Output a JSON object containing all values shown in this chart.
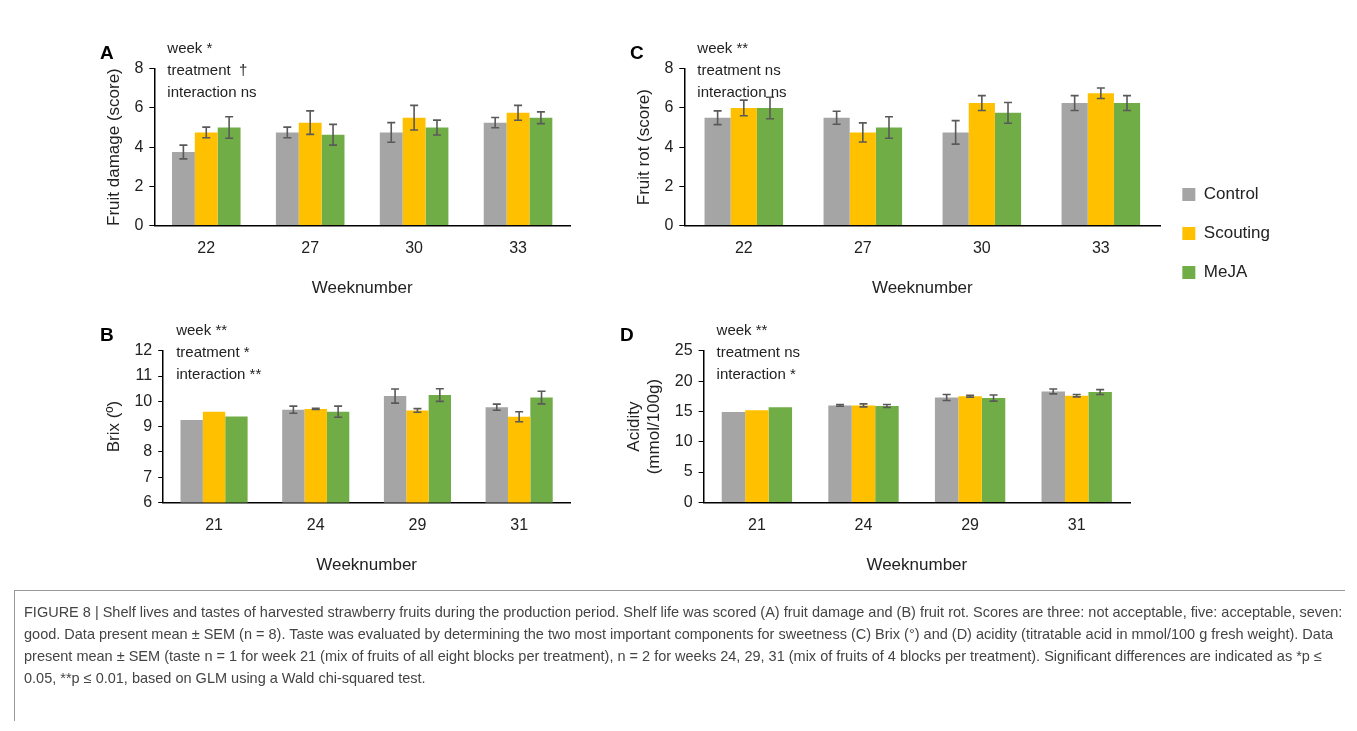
{
  "chart_data": [
    {
      "type": "bar",
      "title": "A",
      "xlabel": "Weeknumber",
      "ylabel": "Fruit damage (score)",
      "categories": [
        "22",
        "27",
        "30",
        "33"
      ],
      "ylim": [
        0,
        8
      ],
      "yticks": [
        0,
        2,
        4,
        6,
        8
      ],
      "annotations": [
        "week *",
        "treatment  †",
        "interaction ns"
      ],
      "series": [
        {
          "color": "#a5a5a5",
          "values": [
            3.75,
            4.75,
            4.75,
            5.25
          ],
          "errors": [
            0.35,
            0.27,
            0.5,
            0.26
          ]
        },
        {
          "color": "#ffc000",
          "values": [
            4.75,
            5.25,
            5.5,
            5.75
          ],
          "errors": [
            0.27,
            0.6,
            0.63,
            0.38
          ]
        },
        {
          "color": "#70ad47",
          "values": [
            5.0,
            4.63,
            5.0,
            5.5
          ],
          "errors": [
            0.55,
            0.53,
            0.38,
            0.3
          ]
        }
      ]
    },
    {
      "type": "bar",
      "title": "C",
      "xlabel": "Weeknumber",
      "ylabel": "Fruit rot (score)",
      "categories": [
        "22",
        "27",
        "30",
        "33"
      ],
      "ylim": [
        0,
        8
      ],
      "yticks": [
        0,
        2,
        4,
        6,
        8
      ],
      "legend": "right",
      "annotations": [
        "week **",
        "treatment ns",
        "interaction ns"
      ],
      "series": [
        {
          "name": "Control",
          "color": "#a5a5a5",
          "values": [
            5.5,
            5.5,
            4.75,
            6.25
          ],
          "errors": [
            0.35,
            0.33,
            0.6,
            0.38
          ]
        },
        {
          "name": "Scouting",
          "color": "#ffc000",
          "values": [
            6.0,
            4.75,
            6.25,
            6.75
          ],
          "errors": [
            0.4,
            0.49,
            0.38,
            0.27
          ]
        },
        {
          "name": "MeJA",
          "color": "#70ad47",
          "values": [
            6.0,
            5.0,
            5.75,
            6.25
          ],
          "errors": [
            0.55,
            0.55,
            0.53,
            0.38
          ]
        }
      ]
    },
    {
      "type": "bar",
      "title": "B",
      "xlabel": "Weeknumber",
      "ylabel": "Brix (º)",
      "categories": [
        "21",
        "24",
        "29",
        "31"
      ],
      "ylim": [
        6,
        12
      ],
      "yticks": [
        6,
        7,
        8,
        9,
        10,
        11,
        12
      ],
      "annotations": [
        "week **",
        "treatment *",
        "interaction **"
      ],
      "series": [
        {
          "color": "#a5a5a5",
          "values": [
            9.26,
            9.67,
            10.21,
            9.77
          ],
          "errors": [
            null,
            0.14,
            0.28,
            0.12
          ]
        },
        {
          "color": "#ffc000",
          "values": [
            9.59,
            9.7,
            9.64,
            9.39
          ],
          "errors": [
            null,
            0.02,
            0.07,
            0.2
          ]
        },
        {
          "color": "#70ad47",
          "values": [
            9.4,
            9.59,
            10.25,
            10.15
          ],
          "errors": [
            null,
            0.22,
            0.25,
            0.25
          ]
        }
      ]
    },
    {
      "type": "bar",
      "title": "D",
      "xlabel": "Weeknumber",
      "ylabel": "Acidity\n(mmol/100g)",
      "categories": [
        "21",
        "24",
        "29",
        "31"
      ],
      "ylim": [
        0,
        25
      ],
      "yticks": [
        0,
        5,
        10,
        15,
        20,
        25
      ],
      "annotations": [
        "week **",
        "treatment ns",
        "interaction *",
        "FIGURE 8 | Shelf lives and tastes of harvested strawberry fruits during the production period. Shelf life was scored (A) fruit damage and (B) fruit rot. Scores are three: not acceptable, five: acceptable, seven: good. Data present mean ± SEM (n = 8). Taste was evaluated by determining the two most important components for sweetness (C) Brix (°) and (D) acidity (titratable acid in mmol/100 g fresh weight). Data present mean ± SEM (taste n = 1 for week 21 (mix of fruits of all eight blocks per treatment), n = 2 for weeks 24, 29, 31 (mix of fruits of 4 blocks per treatment). Significant differences are indicated as *p ≤ 0.05, **p ≤ 0.01, based on GLM using a Wald chi-squared test."
      ],
      "series": [
        {
          "color": "#a5a5a5",
          "values": [
            14.9,
            16.0,
            17.3,
            18.3
          ],
          "errors": [
            null,
            0.15,
            0.5,
            0.4
          ]
        },
        {
          "color": "#ffc000",
          "values": [
            15.2,
            16.0,
            17.5,
            17.6
          ],
          "errors": [
            null,
            0.25,
            0.15,
            0.2
          ]
        },
        {
          "color": "#70ad47",
          "values": [
            15.7,
            15.9,
            17.2,
            18.2
          ],
          "errors": [
            null,
            0.25,
            0.5,
            0.4
          ]
        }
      ]
    }
  ]
}
